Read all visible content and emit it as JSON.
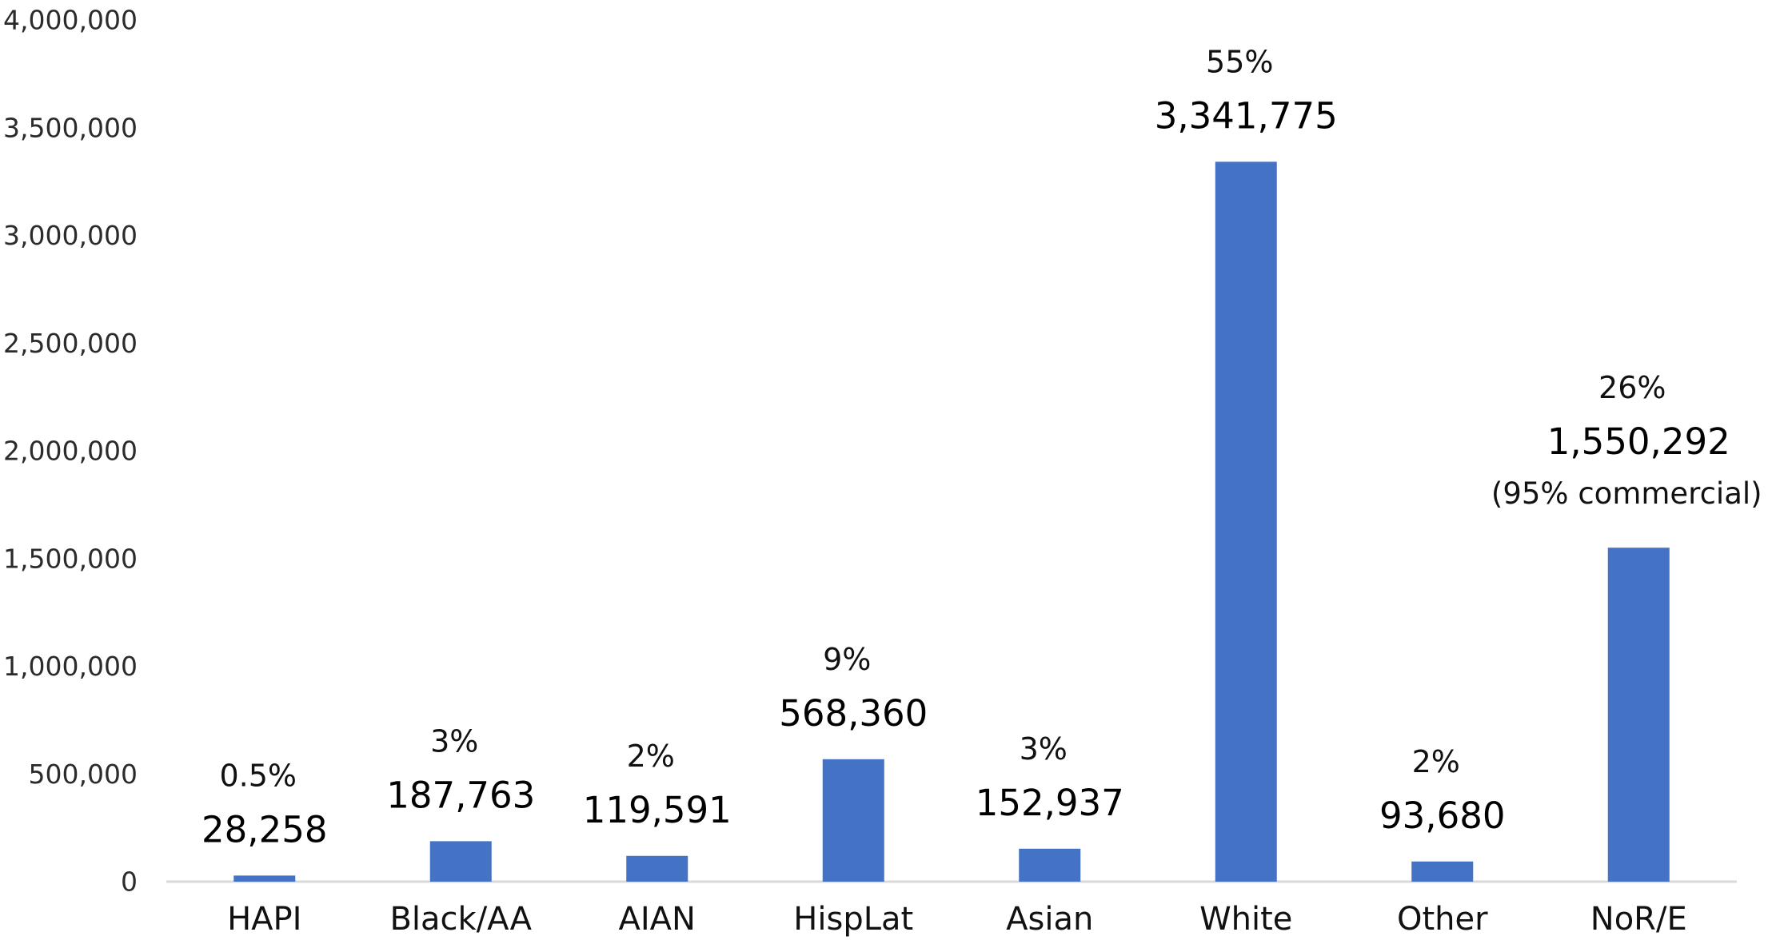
{
  "chart_data": {
    "type": "bar",
    "categories": [
      "HAPI",
      "Black/AA",
      "AIAN",
      "HispLat",
      "Asian",
      "White",
      "Other",
      "NoR/E"
    ],
    "values": [
      28258,
      187763,
      119591,
      568360,
      152937,
      3341775,
      93680,
      1550292
    ],
    "value_labels": [
      "28,258",
      "187,763",
      "119,591",
      "568,360",
      "152,937",
      "3,341,775",
      "93,680",
      "1,550,292"
    ],
    "percent_labels": [
      "0.5%",
      "3%",
      "2%",
      "9%",
      "3%",
      "55%",
      "2%",
      "26%"
    ],
    "annotations": [
      "",
      "",
      "",
      "",
      "",
      "",
      "",
      "(95% commercial)"
    ],
    "yticks": [
      0,
      500000,
      1000000,
      1500000,
      2000000,
      2500000,
      3000000,
      3500000,
      4000000
    ],
    "ytick_labels": [
      "0",
      "500,000",
      "1,000,000",
      "1,500,000",
      "2,000,000",
      "2,500,000",
      "3,000,000",
      "3,500,000",
      "4,000,000"
    ],
    "ylim": [
      0,
      4000000
    ],
    "grid": false,
    "legend": "none",
    "title": "",
    "xlabel": "",
    "ylabel": "",
    "colors": {
      "bar": "#4472C4",
      "axis": "#d9d9d9"
    }
  }
}
